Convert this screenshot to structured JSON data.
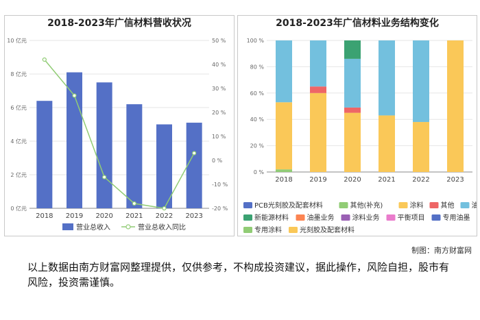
{
  "credit": "制图：南方财富网",
  "disclaimer": "以上数据由南方财富网整理提供，仅供参考，不构成投资建议，据此操作，风险自担，股市有风险，投资需谨慎。",
  "chart_data": [
    {
      "type": "bar",
      "title": "2018-2023年广信材料营收状况",
      "categories": [
        "2018",
        "2019",
        "2020",
        "2021",
        "2022",
        "2023"
      ],
      "series": [
        {
          "name": "营业总收入",
          "kind": "bar",
          "axis": "left",
          "color": "#5470c6",
          "values": [
            6.4,
            8.1,
            7.5,
            6.2,
            5.0,
            5.1
          ]
        },
        {
          "name": "营业总收入同比",
          "kind": "line",
          "axis": "right",
          "color": "#91cc75",
          "values": [
            42,
            27,
            -7,
            -18,
            -20,
            3
          ]
        }
      ],
      "ylim_left": [
        0,
        10
      ],
      "yticks_left": [
        "0 亿元",
        "2 亿元",
        "4 亿元",
        "6 亿元",
        "8 亿元",
        "10 亿元"
      ],
      "ylim_right": [
        -20,
        50
      ],
      "yticks_right": [
        "-20 %",
        "-10 %",
        "0 %",
        "10 %",
        "20 %",
        "30 %",
        "40 %",
        "50 %"
      ],
      "legend_position": "bottom"
    },
    {
      "type": "bar",
      "stacked": "percent",
      "title": "2018-2023年广信材料业务结构变化",
      "categories": [
        "2018",
        "2019",
        "2020",
        "2021",
        "2022",
        "2023"
      ],
      "series": [
        {
          "name": "PCB光刻胶及配套材料",
          "color": "#5470c6",
          "values": [
            0,
            0,
            0,
            0,
            0,
            0
          ]
        },
        {
          "name": "其他(补充)",
          "color": "#91cc75",
          "values": [
            2,
            0,
            0,
            0,
            0,
            0
          ]
        },
        {
          "name": "涂料",
          "color": "#fac858",
          "values": [
            51,
            60,
            45,
            43,
            38,
            0
          ]
        },
        {
          "name": "其他",
          "color": "#ee6666",
          "values": [
            0,
            5,
            4,
            0,
            0,
            0
          ]
        },
        {
          "name": "油墨",
          "color": "#73c0de",
          "values": [
            47,
            35,
            37,
            57,
            62,
            0
          ]
        },
        {
          "name": "新能源材料",
          "color": "#3ba272",
          "values": [
            0,
            0,
            14,
            0,
            0,
            0
          ]
        },
        {
          "name": "油墨业务",
          "color": "#fc8452",
          "values": [
            0,
            0,
            0,
            0,
            0,
            0
          ]
        },
        {
          "name": "涂料业务",
          "color": "#9a60b4",
          "values": [
            0,
            0,
            0,
            0,
            0,
            0
          ]
        },
        {
          "name": "平衡项目",
          "color": "#ea7ccc",
          "values": [
            0,
            0,
            0,
            0,
            0,
            0
          ]
        },
        {
          "name": "专用油墨",
          "color": "#5470c6",
          "values": [
            0,
            0,
            0,
            0,
            0,
            0
          ]
        },
        {
          "name": "专用涂料",
          "color": "#91cc75",
          "values": [
            0,
            0,
            0,
            0,
            0,
            0
          ]
        },
        {
          "name": "光刻胶及配套材料",
          "color": "#fac858",
          "values": [
            0,
            0,
            0,
            0,
            0,
            100
          ]
        }
      ],
      "ylim": [
        0,
        100
      ],
      "yticks": [
        "0 %",
        "20 %",
        "40 %",
        "60 %",
        "80 %",
        "100 %"
      ],
      "legend_position": "bottom"
    }
  ]
}
